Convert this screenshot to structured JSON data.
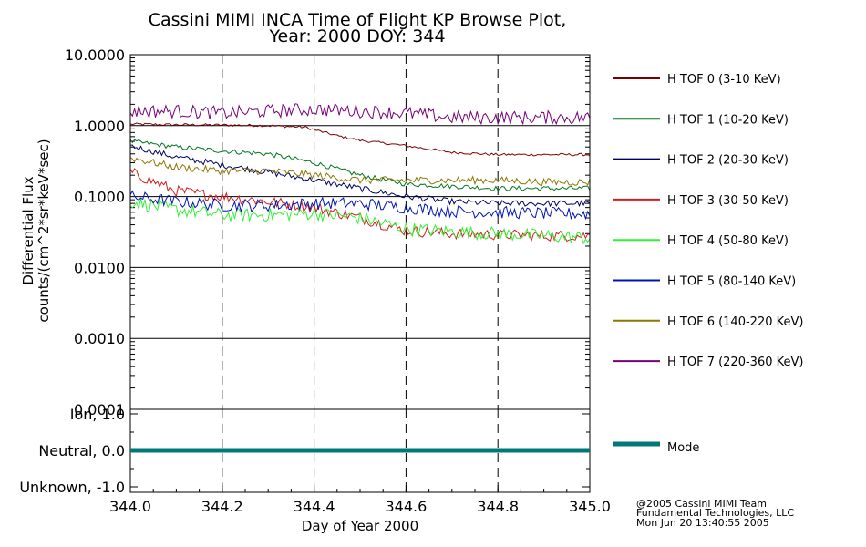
{
  "title_line1": "Cassini MIMI INCA Time of Flight KP Browse Plot,",
  "title_line2": "Year: 2000 DOY: 344",
  "credits": [
    "@2005 Cassini MIMI Team",
    "Fundamental Technologies, LLC",
    "Mon Jun 20 13:40:55 2005"
  ],
  "chart_data": [
    {
      "type": "line",
      "panel": "flux",
      "ylabel": [
        "Differential Flux",
        "counts/(cm^2*sr*keV*sec)"
      ],
      "yscale": "log",
      "ylim": [
        0.0001,
        10.0
      ],
      "xlim": [
        344.0,
        345.0
      ],
      "y_ticks": [
        "10.0000",
        "1.0000",
        "0.1000",
        "0.0100",
        "0.0010",
        "0.0001"
      ],
      "grid": "horizontal solid at decades, vertical dashed at 344.2, 344.4, 344.6, 344.8",
      "legend_position": "right",
      "series": [
        {
          "name": "H TOF 0 (3-10 KeV)",
          "color": "#7a0000",
          "x": [
            344.0,
            344.1,
            344.2,
            344.3,
            344.38,
            344.45,
            344.5,
            344.6,
            344.7,
            344.8,
            344.9,
            345.0
          ],
          "y": [
            1.05,
            1.03,
            1.02,
            1.0,
            0.95,
            0.72,
            0.62,
            0.52,
            0.42,
            0.39,
            0.39,
            0.39
          ]
        },
        {
          "name": "H TOF 1 (10-20 KeV)",
          "color": "#00781e",
          "x": [
            344.0,
            344.1,
            344.2,
            344.3,
            344.4,
            344.5,
            344.6,
            344.7,
            344.8,
            344.9,
            345.0
          ],
          "y": [
            0.6,
            0.5,
            0.44,
            0.4,
            0.3,
            0.2,
            0.15,
            0.14,
            0.13,
            0.13,
            0.13
          ]
        },
        {
          "name": "H TOF 2 (20-30 KeV)",
          "color": "#000064",
          "x": [
            344.0,
            344.1,
            344.2,
            344.3,
            344.4,
            344.5,
            344.6,
            344.7,
            344.8,
            344.9,
            345.0
          ],
          "y": [
            0.52,
            0.36,
            0.28,
            0.22,
            0.17,
            0.13,
            0.1,
            0.085,
            0.08,
            0.08,
            0.08
          ]
        },
        {
          "name": "H TOF 3 (30-50 KeV)",
          "color": "#d21e1e",
          "x": [
            344.0,
            344.1,
            344.2,
            344.3,
            344.4,
            344.5,
            344.6,
            344.7,
            344.8,
            344.9,
            345.0
          ],
          "y": [
            0.22,
            0.12,
            0.1,
            0.085,
            0.07,
            0.05,
            0.033,
            0.03,
            0.029,
            0.028,
            0.028
          ]
        },
        {
          "name": "H TOF 4 (50-80 KeV)",
          "color": "#32f032",
          "x": [
            344.0,
            344.1,
            344.2,
            344.3,
            344.4,
            344.5,
            344.6,
            344.7,
            344.8,
            344.9,
            345.0
          ],
          "y": [
            0.085,
            0.065,
            0.055,
            0.055,
            0.058,
            0.05,
            0.035,
            0.032,
            0.03,
            0.028,
            0.026
          ]
        },
        {
          "name": "H TOF 5 (80-140 KeV)",
          "color": "#0014b4",
          "x": [
            344.0,
            344.1,
            344.2,
            344.3,
            344.4,
            344.5,
            344.6,
            344.7,
            344.8,
            344.9,
            345.0
          ],
          "y": [
            0.1,
            0.085,
            0.075,
            0.075,
            0.08,
            0.08,
            0.07,
            0.062,
            0.06,
            0.058,
            0.057
          ]
        },
        {
          "name": "H TOF 6 (140-220 KeV)",
          "color": "#8c7800",
          "x": [
            344.0,
            344.1,
            344.2,
            344.3,
            344.4,
            344.5,
            344.6,
            344.7,
            344.8,
            344.9,
            345.0
          ],
          "y": [
            0.35,
            0.26,
            0.23,
            0.23,
            0.2,
            0.17,
            0.17,
            0.17,
            0.17,
            0.16,
            0.16
          ]
        },
        {
          "name": "H TOF 7 (220-360 KeV)",
          "color": "#780078",
          "x": [
            344.0,
            344.1,
            344.2,
            344.3,
            344.4,
            344.5,
            344.6,
            344.7,
            344.8,
            344.9,
            345.0
          ],
          "y": [
            1.6,
            1.6,
            1.5,
            1.6,
            1.7,
            1.6,
            1.5,
            1.3,
            1.3,
            1.3,
            1.3
          ]
        }
      ]
    },
    {
      "type": "line",
      "panel": "mode",
      "xlabel": "Day of Year 2000",
      "xlim": [
        344.0,
        345.0
      ],
      "x_ticks": [
        "344.0",
        "344.2",
        "344.4",
        "344.6",
        "344.8",
        "345.0"
      ],
      "ylim": [
        -1.0,
        1.0
      ],
      "y_ticks": [
        "Ion, 1.0",
        "Neutral, 0.0",
        "Unknown, -1.0"
      ],
      "series": [
        {
          "name": "Mode",
          "color": "#00787a",
          "x": [
            344.0,
            345.0
          ],
          "y": [
            0.0,
            0.0
          ]
        }
      ]
    }
  ]
}
